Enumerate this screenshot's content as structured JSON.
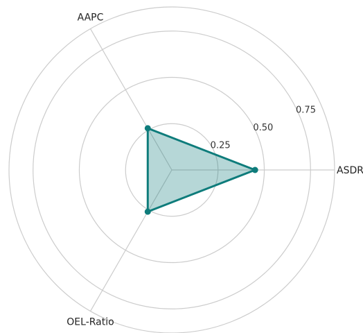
{
  "chart_data": {
    "type": "radar",
    "axes": [
      "ASDR",
      "AAPC",
      "OEL-Ratio"
    ],
    "radial_ticks": [
      0.25,
      0.5,
      0.75
    ],
    "radial_tick_labels": [
      "0.25",
      "0.50",
      "0.75"
    ],
    "rlim": [
      0,
      0.88
    ],
    "series": [
      {
        "values": [
          0.45,
          0.26,
          0.26
        ]
      }
    ],
    "colors": {
      "line": "#0e7c7b",
      "fill": "#0e7c7b",
      "fill_opacity": 0.3
    },
    "grid": true
  }
}
